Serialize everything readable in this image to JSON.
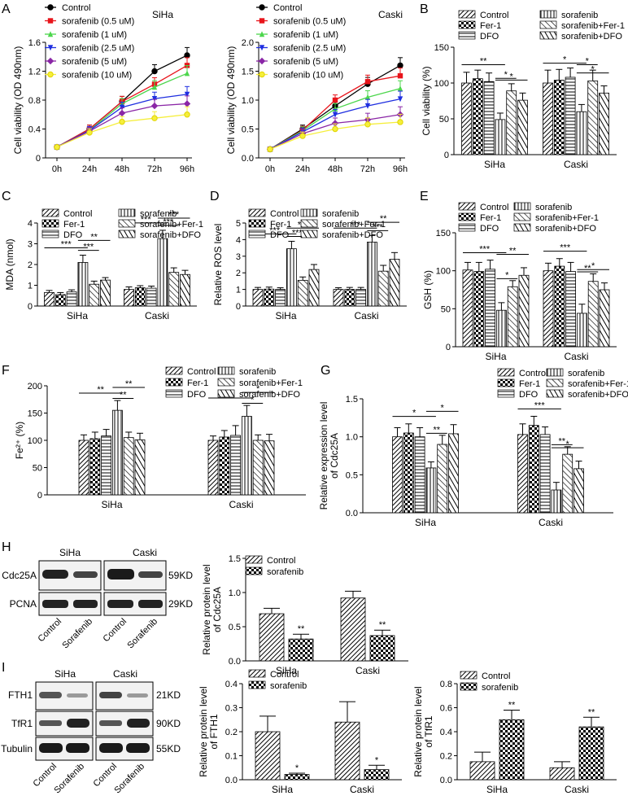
{
  "colors": {
    "black": "#000000",
    "red": "#e8141b",
    "green": "#4cd64c",
    "blue": "#1f2fe0",
    "purple": "#8a26a6",
    "yellow": "#f5ee3a"
  },
  "panels": {
    "A": {
      "letter": "A"
    },
    "B": {
      "letter": "B"
    },
    "C": {
      "letter": "C"
    },
    "D": {
      "letter": "D"
    },
    "E": {
      "letter": "E"
    },
    "F": {
      "letter": "F"
    },
    "G": {
      "letter": "G"
    },
    "H": {
      "letter": "H"
    },
    "I": {
      "letter": "I"
    }
  },
  "blots": {
    "H": {
      "groups": [
        "SiHa",
        "Caski"
      ],
      "rows": [
        "Cdc25A",
        "PCNA"
      ],
      "sizes": [
        "59KD",
        "29KD"
      ],
      "lanes": [
        "Control",
        "Sorafenib",
        "Control",
        "Sorafenib"
      ]
    },
    "I": {
      "groups": [
        "SiHa",
        "Caski"
      ],
      "rows": [
        "FTH1",
        "TfR1",
        "Tubulin"
      ],
      "sizes": [
        "21KD",
        "90KD",
        "55KD"
      ],
      "lanes": [
        "Control",
        "Sorafenib",
        "Control",
        "Sorafenib"
      ]
    }
  },
  "chart_data": [
    {
      "id": "A1",
      "type": "line",
      "title": "SiHa",
      "ylabel": "Cell viability (OD 490nm)",
      "categories": [
        "0h",
        "24h",
        "48h",
        "72h",
        "96h"
      ],
      "ylim": [
        0,
        1.6
      ],
      "yticks": [
        "0",
        "0.4",
        "0.8",
        "1.2",
        "1.6"
      ],
      "series": [
        {
          "name": "Control",
          "values": [
            0.15,
            0.4,
            0.78,
            1.2,
            1.42
          ]
        },
        {
          "name": "sorafenib (0.5 uM)",
          "values": [
            0.15,
            0.4,
            0.78,
            1.02,
            1.28
          ]
        },
        {
          "name": "sorafenib (1 uM)",
          "values": [
            0.15,
            0.38,
            0.75,
            0.98,
            1.17
          ]
        },
        {
          "name": "sorafenib (2.5 uM)",
          "values": [
            0.15,
            0.38,
            0.7,
            0.82,
            0.88
          ]
        },
        {
          "name": "sorafenib (5 uM)",
          "values": [
            0.15,
            0.37,
            0.62,
            0.72,
            0.75
          ]
        },
        {
          "name": "sorafenib (10 uM)",
          "values": [
            0.15,
            0.35,
            0.5,
            0.55,
            0.6
          ]
        }
      ]
    },
    {
      "id": "A2",
      "type": "line",
      "title": "Caski",
      "ylabel": "Cell viability (OD 490nm)",
      "categories": [
        "0h",
        "24h",
        "48h",
        "72h",
        "96h"
      ],
      "ylim": [
        0,
        2.0
      ],
      "yticks": [
        "0.0",
        "0.5",
        "1.0",
        "1.5",
        "2.0"
      ],
      "series": [
        {
          "name": "Control",
          "values": [
            0.15,
            0.5,
            0.9,
            1.28,
            1.6
          ]
        },
        {
          "name": "sorafenib (0.5 uM)",
          "values": [
            0.15,
            0.48,
            1.0,
            1.32,
            1.42
          ]
        },
        {
          "name": "sorafenib (1 uM)",
          "values": [
            0.15,
            0.47,
            0.85,
            1.05,
            1.2
          ]
        },
        {
          "name": "sorafenib (2.5 uM)",
          "values": [
            0.15,
            0.45,
            0.75,
            0.9,
            1.02
          ]
        },
        {
          "name": "sorafenib (5 uM)",
          "values": [
            0.15,
            0.42,
            0.6,
            0.66,
            0.75
          ]
        },
        {
          "name": "sorafenib (10 uM)",
          "values": [
            0.15,
            0.38,
            0.5,
            0.58,
            0.62
          ]
        }
      ]
    },
    {
      "id": "B",
      "type": "bar",
      "ylabel": "Cell viability (%)",
      "categories": [
        "SiHa",
        "Caski"
      ],
      "ylim": [
        0,
        150
      ],
      "yticks": [
        "0",
        "50",
        "100",
        "150"
      ],
      "legend": [
        "Control",
        "Fer-1",
        "DFO",
        "sorafenib",
        "sorafenib+Fer-1",
        "sorafenib+DFO"
      ],
      "series": [
        {
          "name": "Control",
          "values": [
            100,
            100
          ],
          "errors": [
            15,
            18
          ]
        },
        {
          "name": "Fer-1",
          "values": [
            106,
            104
          ],
          "errors": [
            12,
            15
          ]
        },
        {
          "name": "DFO",
          "values": [
            102,
            108
          ],
          "errors": [
            12,
            13
          ]
        },
        {
          "name": "sorafenib",
          "values": [
            49,
            60
          ],
          "errors": [
            9,
            10
          ]
        },
        {
          "name": "sorafenib+Fer-1",
          "values": [
            89,
            103
          ],
          "errors": [
            10,
            15
          ]
        },
        {
          "name": "sorafenib+DFO",
          "values": [
            76,
            86
          ],
          "errors": [
            10,
            10
          ]
        }
      ],
      "annotations": [
        "**",
        "*",
        "*",
        "*",
        "*",
        "*"
      ]
    },
    {
      "id": "C",
      "type": "bar",
      "ylabel": "MDA (nmol)",
      "categories": [
        "SiHa",
        "Caski"
      ],
      "ylim": [
        0,
        4
      ],
      "yticks": [
        "0",
        "1",
        "2",
        "3",
        "4"
      ],
      "legend": [
        "Control",
        "Fer-1",
        "DFO",
        "sorafenib",
        "sorafenib+Fer-1",
        "sorafenib+DFO"
      ],
      "series": [
        {
          "name": "Control",
          "values": [
            0.65,
            0.8
          ],
          "errors": [
            0.1,
            0.12
          ]
        },
        {
          "name": "Fer-1",
          "values": [
            0.55,
            0.88
          ],
          "errors": [
            0.1,
            0.1
          ]
        },
        {
          "name": "DFO",
          "values": [
            0.68,
            0.86
          ],
          "errors": [
            0.1,
            0.1
          ]
        },
        {
          "name": "sorafenib",
          "values": [
            2.1,
            3.25
          ],
          "errors": [
            0.35,
            0.4
          ]
        },
        {
          "name": "sorafenib+Fer-1",
          "values": [
            1.05,
            1.62
          ],
          "errors": [
            0.15,
            0.22
          ]
        },
        {
          "name": "sorafenib+DFO",
          "values": [
            1.25,
            1.52
          ],
          "errors": [
            0.12,
            0.2
          ]
        }
      ],
      "annotations": [
        "***",
        "***",
        "**",
        "***",
        "***",
        "***"
      ]
    },
    {
      "id": "D",
      "type": "bar",
      "ylabel": "Relative ROS level",
      "categories": [
        "SiHa",
        "Caski"
      ],
      "ylim": [
        0,
        5
      ],
      "yticks": [
        "0",
        "1",
        "2",
        "3",
        "4",
        "5"
      ],
      "legend": [
        "Control",
        "Fer-1",
        "DFO",
        "sorafenib",
        "sorafenib+Fer-1",
        "sorafenib+DFO"
      ],
      "series": [
        {
          "name": "Control",
          "values": [
            1.0,
            1.0
          ],
          "errors": [
            0.12,
            0.1
          ]
        },
        {
          "name": "Fer-1",
          "values": [
            1.02,
            1.0
          ],
          "errors": [
            0.12,
            0.12
          ]
        },
        {
          "name": "DFO",
          "values": [
            1.0,
            1.0
          ],
          "errors": [
            0.1,
            0.12
          ]
        },
        {
          "name": "sorafenib",
          "values": [
            3.45,
            3.85
          ],
          "errors": [
            0.45,
            0.4
          ]
        },
        {
          "name": "sorafenib+Fer-1",
          "values": [
            1.55,
            2.1
          ],
          "errors": [
            0.2,
            0.35
          ]
        },
        {
          "name": "sorafenib+DFO",
          "values": [
            2.2,
            2.82
          ],
          "errors": [
            0.3,
            0.4
          ]
        }
      ],
      "annotations": [
        "***",
        "***",
        "***",
        "***",
        "***",
        "**"
      ]
    },
    {
      "id": "E",
      "type": "bar",
      "ylabel": "GSH (%)",
      "categories": [
        "SiHa",
        "Caski"
      ],
      "ylim": [
        0,
        150
      ],
      "yticks": [
        "0",
        "50",
        "100",
        "150"
      ],
      "legend": [
        "Control",
        "Fer-1",
        "DFO",
        "sorafenib",
        "sorafenib+Fer-1",
        "sorafenib+DFO"
      ],
      "series": [
        {
          "name": "Control",
          "values": [
            101,
            100
          ],
          "errors": [
            10,
            10
          ]
        },
        {
          "name": "Fer-1",
          "values": [
            99,
            106
          ],
          "errors": [
            12,
            10
          ]
        },
        {
          "name": "DFO",
          "values": [
            102,
            99
          ],
          "errors": [
            12,
            12
          ]
        },
        {
          "name": "sorafenib",
          "values": [
            48,
            44
          ],
          "errors": [
            10,
            12
          ]
        },
        {
          "name": "sorafenib+Fer-1",
          "values": [
            79,
            86
          ],
          "errors": [
            8,
            10
          ]
        },
        {
          "name": "sorafenib+DFO",
          "values": [
            94,
            75
          ],
          "errors": [
            10,
            9
          ]
        }
      ],
      "annotations": [
        "***",
        "*",
        "**",
        "***",
        "**",
        "*"
      ]
    },
    {
      "id": "F",
      "type": "bar",
      "ylabel": "Fe²⁺ (%)",
      "categories": [
        "SiHa",
        "Caski"
      ],
      "ylim": [
        0,
        200
      ],
      "yticks": [
        "0",
        "50",
        "100",
        "150",
        "200"
      ],
      "legend": [
        "Control",
        "Fer-1",
        "DFO",
        "sorafenib",
        "sorafenib+Fer-1",
        "sorafenib+DFO"
      ],
      "series": [
        {
          "name": "Control",
          "values": [
            100,
            100
          ],
          "errors": [
            10,
            8
          ]
        },
        {
          "name": "Fer-1",
          "values": [
            103,
            106
          ],
          "errors": [
            12,
            12
          ]
        },
        {
          "name": "DFO",
          "values": [
            108,
            109
          ],
          "errors": [
            12,
            18
          ]
        },
        {
          "name": "sorafenib",
          "values": [
            155,
            144
          ],
          "errors": [
            18,
            20
          ]
        },
        {
          "name": "sorafenib+Fer-1",
          "values": [
            105,
            100
          ],
          "errors": [
            10,
            10
          ]
        },
        {
          "name": "sorafenib+DFO",
          "values": [
            101,
            99
          ],
          "errors": [
            12,
            12
          ]
        }
      ],
      "annotations": [
        "**",
        "**",
        "**",
        "*",
        "*",
        "*"
      ]
    },
    {
      "id": "G",
      "type": "bar",
      "ylabel": "Relative expression level of Cdc25A",
      "ylabel_lines": [
        "Relative expression level",
        "of Cdc25A"
      ],
      "categories": [
        "SiHa",
        "Caski"
      ],
      "ylim": [
        0,
        1.5
      ],
      "yticks": [
        "0.0",
        "0.5",
        "1.0",
        "1.5"
      ],
      "legend": [
        "Control",
        "Fer-1",
        "DFO",
        "sorafenib",
        "sorafenib+Fer-1",
        "sorafenib+DFO"
      ],
      "series": [
        {
          "name": "Control",
          "values": [
            1.0,
            1.03
          ],
          "errors": [
            0.12,
            0.14
          ]
        },
        {
          "name": "Fer-1",
          "values": [
            1.05,
            1.15
          ],
          "errors": [
            0.12,
            0.12
          ]
        },
        {
          "name": "DFO",
          "values": [
            1.0,
            1.03
          ],
          "errors": [
            0.12,
            0.1
          ]
        },
        {
          "name": "sorafenib",
          "values": [
            0.59,
            0.3
          ],
          "errors": [
            0.08,
            0.1
          ]
        },
        {
          "name": "sorafenib+Fer-1",
          "values": [
            0.9,
            0.77
          ],
          "errors": [
            0.12,
            0.1
          ]
        },
        {
          "name": "sorafenib+DFO",
          "values": [
            1.04,
            0.58
          ],
          "errors": [
            0.12,
            0.1
          ]
        }
      ],
      "annotations": [
        "*",
        "**",
        "*",
        "***",
        "**",
        "*"
      ]
    },
    {
      "id": "H",
      "type": "bar",
      "ylabel": "Relative protein level of Cdc25A",
      "ylabel_lines": [
        "Relative protein level",
        "of Cdc25A"
      ],
      "categories": [
        "SiHa",
        "Caski"
      ],
      "ylim": [
        0,
        1.5
      ],
      "yticks": [
        "0.0",
        "0.5",
        "1.0",
        "1.5"
      ],
      "legend": [
        "Control",
        "sorafenib"
      ],
      "series": [
        {
          "name": "Control",
          "values": [
            0.69,
            0.92
          ],
          "errors": [
            0.08,
            0.1
          ]
        },
        {
          "name": "sorafenib",
          "values": [
            0.32,
            0.37
          ],
          "errors": [
            0.07,
            0.08
          ]
        }
      ],
      "annotations": [
        "**",
        "**"
      ]
    },
    {
      "id": "I1",
      "type": "bar",
      "ylabel": "Relative protein level of FTH1",
      "ylabel_lines": [
        "Relative protein level",
        "of FTH1"
      ],
      "categories": [
        "SiHa",
        "Caski"
      ],
      "ylim": [
        0,
        0.4
      ],
      "yticks": [
        "0.0",
        "0.1",
        "0.2",
        "0.3",
        "0.4"
      ],
      "legend": [
        "Control",
        "sorafenib"
      ],
      "series": [
        {
          "name": "Control",
          "values": [
            0.2,
            0.24
          ],
          "errors": [
            0.065,
            0.085
          ]
        },
        {
          "name": "sorafenib",
          "values": [
            0.022,
            0.042
          ],
          "errors": [
            0.005,
            0.018
          ]
        }
      ],
      "annotations": [
        "*",
        "*"
      ]
    },
    {
      "id": "I2",
      "type": "bar",
      "ylabel": "Relative protein level of TfR1",
      "ylabel_lines": [
        "Relative protein level",
        "of TfR1"
      ],
      "categories": [
        "SiHa",
        "Caski"
      ],
      "ylim": [
        0,
        0.8
      ],
      "yticks": [
        "0.0",
        "0.2",
        "0.4",
        "0.6",
        "0.8"
      ],
      "legend": [
        "Control",
        "sorafenib"
      ],
      "series": [
        {
          "name": "Control",
          "values": [
            0.15,
            0.1
          ],
          "errors": [
            0.08,
            0.05
          ]
        },
        {
          "name": "sorafenib",
          "values": [
            0.5,
            0.44
          ],
          "errors": [
            0.08,
            0.08
          ]
        }
      ],
      "annotations": [
        "**",
        "**"
      ]
    }
  ]
}
